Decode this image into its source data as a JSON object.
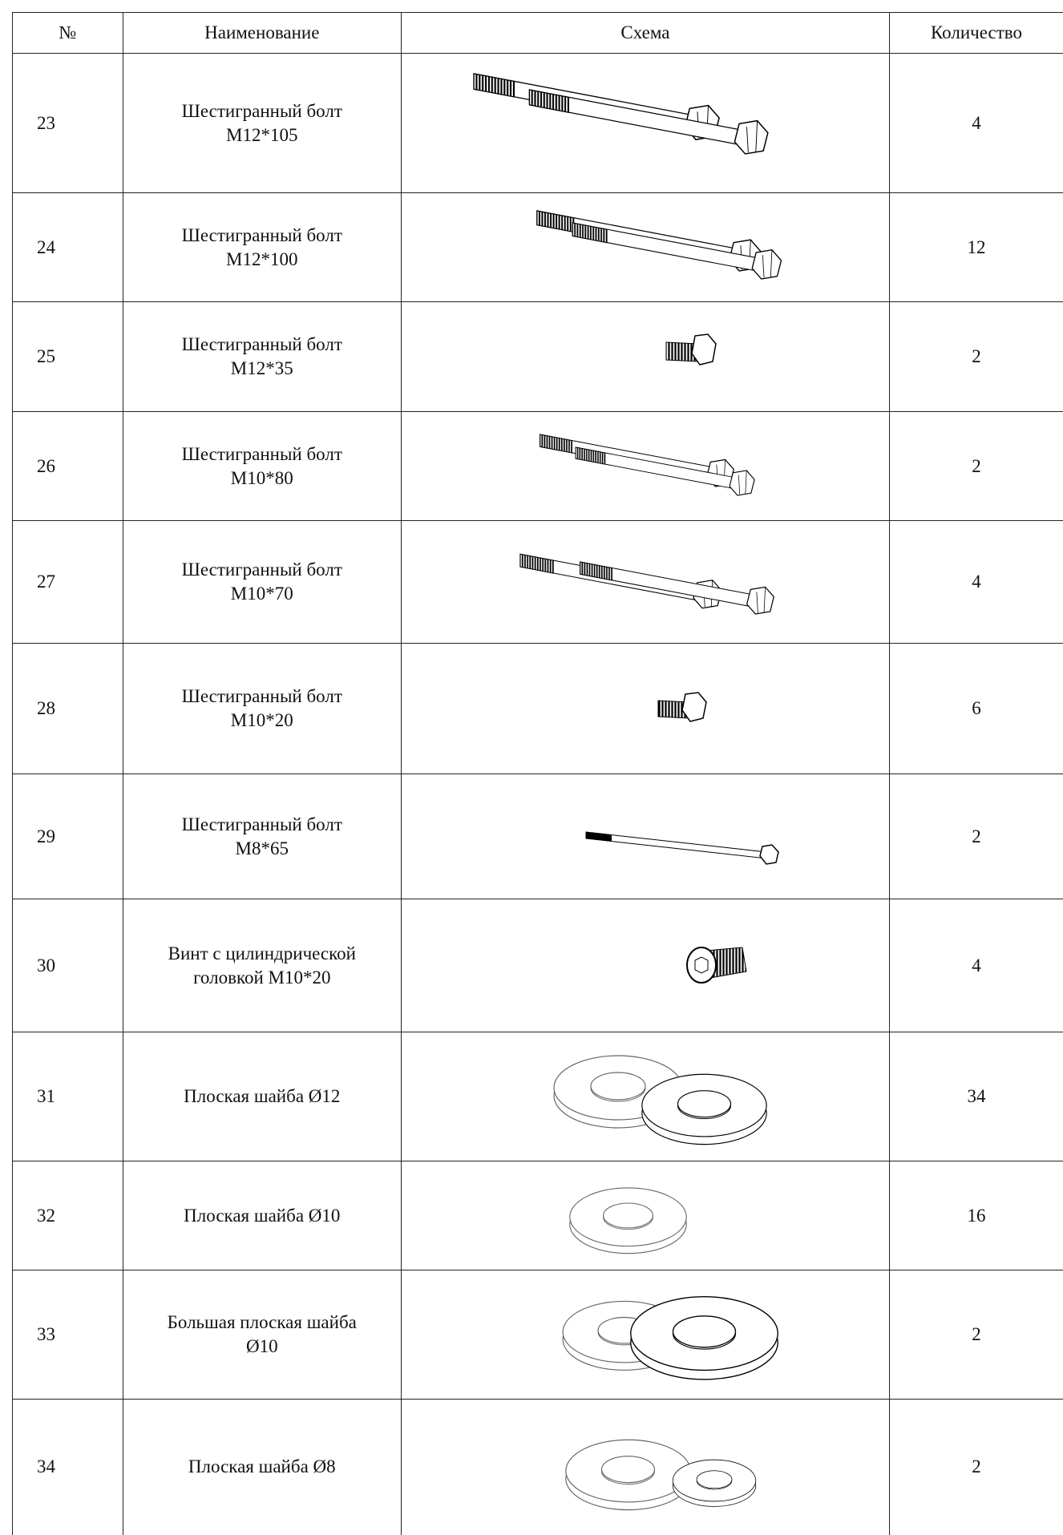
{
  "table": {
    "header": [
      "№",
      "Наименование",
      "Схема",
      "Количество"
    ],
    "rows": [
      {
        "num": "23",
        "name": [
          "Шестигранный болт",
          "M12*105"
        ],
        "qty": "4"
      },
      {
        "num": "24",
        "name": [
          "Шестигранный болт",
          "M12*100"
        ],
        "qty": "12"
      },
      {
        "num": "25",
        "name": [
          "Шестигранный болт",
          "M12*35"
        ],
        "qty": "2"
      },
      {
        "num": "26",
        "name": [
          "Шестигранный болт",
          "M10*80"
        ],
        "qty": "2"
      },
      {
        "num": "27",
        "name": [
          "Шестигранный болт",
          "M10*70"
        ],
        "qty": "4"
      },
      {
        "num": "28",
        "name": [
          "Шестигранный болт",
          "M10*20"
        ],
        "qty": "6"
      },
      {
        "num": "29",
        "name": [
          "Шестигранный болт",
          "M8*65"
        ],
        "qty": "2"
      },
      {
        "num": "30",
        "name": [
          "Винт с цилиндрической",
          "головкой M10*20"
        ],
        "qty": "4"
      },
      {
        "num": "31",
        "name": [
          "Плоская шайба Ø12"
        ],
        "qty": "34"
      },
      {
        "num": "32",
        "name": [
          "Плоская шайба Ø10"
        ],
        "qty": "16"
      },
      {
        "num": "33",
        "name": [
          "Большая плоская шайба",
          "Ø10"
        ],
        "qty": "2"
      },
      {
        "num": "34",
        "name": [
          "Плоская шайба Ø8"
        ],
        "qty": "2"
      }
    ]
  }
}
